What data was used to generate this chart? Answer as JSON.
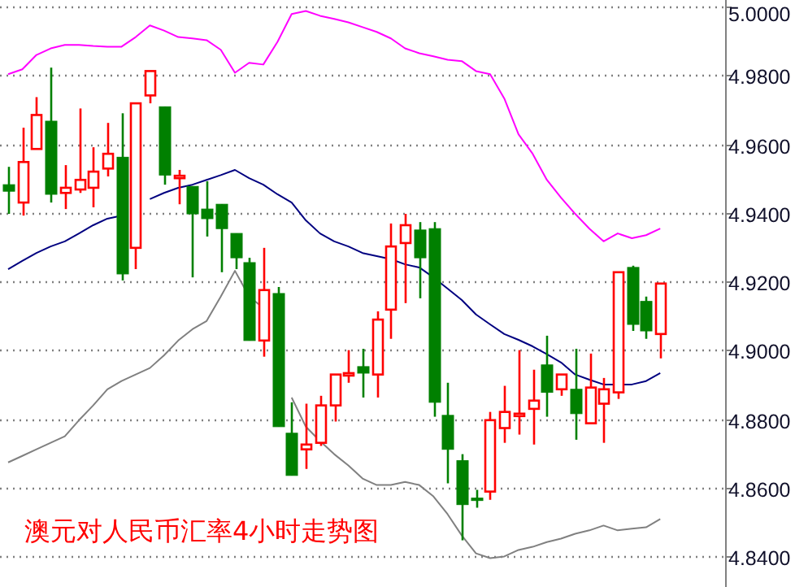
{
  "chart_data": {
    "type": "candlestick",
    "title": "澳元对人民币汇率4小时走势图",
    "categories": [
      null,
      null,
      null,
      null,
      null,
      null,
      null,
      null,
      null,
      null,
      null,
      null,
      null,
      null,
      null,
      null,
      null,
      null,
      null,
      null,
      null,
      null,
      null,
      null,
      null,
      null,
      null,
      null,
      null,
      null,
      null,
      null,
      null,
      null,
      null,
      null,
      null,
      null,
      null,
      null,
      null,
      null,
      null,
      null,
      null,
      null,
      null
    ],
    "ohlc": [
      [
        4.9482,
        4.9534,
        4.9397,
        4.9463
      ],
      [
        4.943,
        4.9648,
        4.9392,
        4.9548
      ],
      [
        4.9586,
        4.9737,
        4.9586,
        4.9685
      ],
      [
        4.9667,
        4.9823,
        4.943,
        4.9454
      ],
      [
        4.9458,
        4.9539,
        4.9411,
        4.9473
      ],
      [
        4.9468,
        4.9704,
        4.9458,
        4.9496
      ],
      [
        4.9473,
        4.9591,
        4.9416,
        4.952
      ],
      [
        4.9529,
        4.9662,
        4.9506,
        4.9572
      ],
      [
        4.9562,
        4.969,
        4.9203,
        4.9222
      ],
      [
        4.9298,
        4.9719,
        4.9236,
        4.9719
      ],
      [
        4.9742,
        4.9813,
        4.9719,
        4.9813
      ],
      [
        4.9709,
        4.9709,
        4.9482,
        4.951
      ],
      [
        4.9503,
        4.9525,
        4.9425,
        4.9508
      ],
      [
        4.9477,
        4.9477,
        4.9212,
        4.9397
      ],
      [
        4.9411,
        4.9492,
        4.9331,
        4.9383
      ],
      [
        4.9425,
        4.9425,
        4.9227,
        4.9354
      ],
      [
        4.934,
        4.934,
        4.9236,
        4.9269
      ],
      [
        4.9255,
        4.9269,
        4.9028,
        4.9028
      ],
      [
        4.9028,
        4.9298,
        4.8981,
        4.9175
      ],
      [
        4.9165,
        4.9184,
        4.8777,
        4.8777
      ],
      [
        4.8758,
        4.8848,
        4.8635,
        4.8635
      ],
      [
        4.8711,
        4.8844,
        4.8654,
        4.8725
      ],
      [
        4.873,
        4.8867,
        4.8721,
        4.8839
      ],
      [
        4.8839,
        4.8929,
        4.8792,
        4.8929
      ],
      [
        4.8929,
        4.9,
        4.8905,
        4.8933
      ],
      [
        4.8952,
        4.9004,
        4.8862,
        4.8933
      ],
      [
        4.8929,
        4.9113,
        4.8862,
        4.9089
      ],
      [
        4.9118,
        4.9369,
        4.9033,
        4.9302
      ],
      [
        4.9312,
        4.9397,
        4.9137,
        4.9364
      ],
      [
        4.935,
        4.9373,
        4.9151,
        4.9269
      ],
      [
        4.9354,
        4.9373,
        4.8806,
        4.8848
      ],
      [
        4.881,
        4.8905,
        4.8612,
        4.8711
      ],
      [
        4.8678,
        4.8697,
        4.8446,
        4.855
      ],
      [
        4.8569,
        4.8593,
        4.8541,
        4.8564
      ],
      [
        4.8588,
        4.882,
        4.8564,
        4.8796
      ],
      [
        4.8773,
        4.8896,
        4.873,
        4.882
      ],
      [
        4.881,
        4.9,
        4.8754,
        4.8815
      ],
      [
        4.8829,
        4.8943,
        4.8725,
        4.8853
      ],
      [
        4.8957,
        4.9042,
        4.8806,
        4.8877
      ],
      [
        4.8886,
        4.8929,
        4.8867,
        4.8929
      ],
      [
        4.8886,
        4.9004,
        4.8739,
        4.8815
      ],
      [
        4.8787,
        4.899,
        4.8787,
        4.8891
      ],
      [
        4.8844,
        4.8919,
        4.873,
        4.8886
      ],
      [
        4.8877,
        4.9227,
        4.8858,
        4.9227
      ],
      [
        4.9241,
        4.9246,
        4.9056,
        4.9075
      ],
      [
        4.9142,
        4.9156,
        4.9033,
        4.9056
      ],
      [
        4.9047,
        4.9194,
        4.8976,
        4.9194
      ]
    ],
    "colors": [
      "#008000",
      "#ff0000",
      "#ff0000",
      "#008000",
      "#ff0000",
      "#ff0000",
      "#ff0000",
      "#ff0000",
      "#008000",
      "#ff0000",
      "#ff0000",
      "#008000",
      "#ff0000",
      "#008000",
      "#008000",
      "#008000",
      "#008000",
      "#008000",
      "#ff0000",
      "#008000",
      "#008000",
      "#ff0000",
      "#ff0000",
      "#ff0000",
      "#ff0000",
      "#008000",
      "#ff0000",
      "#ff0000",
      "#ff0000",
      "#008000",
      "#008000",
      "#008000",
      "#008000",
      "#008000",
      "#ff0000",
      "#ff0000",
      "#ff0000",
      "#ff0000",
      "#008000",
      "#ff0000",
      "#008000",
      "#ff0000",
      "#ff0000",
      "#ff0000",
      "#008000",
      "#008000",
      "#ff0000"
    ],
    "series": [
      {
        "type": "line",
        "color": "#ff00ff",
        "values": [
          4.9804,
          4.9818,
          4.986,
          4.9879,
          4.9889,
          4.9889,
          4.9886,
          4.9884,
          4.9884,
          4.9912,
          4.9946,
          4.9931,
          4.9912,
          4.9908,
          4.9903,
          4.9875,
          4.9808,
          4.9837,
          4.9832,
          4.9898,
          4.9979,
          4.9988,
          4.9974,
          4.9965,
          4.9955,
          4.9941,
          4.9927,
          4.9908,
          4.9879,
          4.9865,
          4.9856,
          4.9846,
          4.9842,
          4.9813,
          4.9804,
          4.9733,
          4.9629,
          4.9572,
          4.9496,
          4.9444,
          4.9397,
          4.9354,
          4.9317,
          4.934,
          4.9326,
          4.9335,
          4.9354
        ]
      },
      {
        "type": "line",
        "color": "#000080",
        "values": [
          4.9236,
          4.926,
          4.9283,
          4.9302,
          4.9317,
          4.934,
          4.9364,
          4.9383,
          4.9392,
          null,
          4.944,
          4.9458,
          4.9473,
          4.9482,
          4.9496,
          4.951,
          4.9525,
          4.9501,
          4.9482,
          4.9454,
          4.943,
          4.9378,
          4.934,
          4.9317,
          4.9302,
          4.9283,
          4.9274,
          4.9265,
          4.925,
          4.9241,
          4.9212,
          4.9179,
          4.9146,
          4.9104,
          4.9075,
          4.9047,
          4.903,
          4.9011,
          4.8988,
          4.8964,
          4.8929,
          4.8914,
          4.89,
          4.89,
          4.89,
          4.891,
          4.8933
        ]
      },
      {
        "type": "line",
        "color": "#808080",
        "values": [
          4.8673,
          4.8692,
          4.8711,
          4.873,
          4.8749,
          4.8796,
          4.8839,
          4.8886,
          4.891,
          4.8929,
          4.8948,
          4.8985,
          4.9028,
          4.9061,
          4.9085,
          4.9156,
          4.9231,
          4.9156,
          4.9123,
          null,
          4.8862,
          4.8777,
          4.8735,
          4.8697,
          4.8664,
          4.8626,
          4.8607,
          4.8607,
          4.8616,
          4.8607,
          4.8574,
          4.8522,
          4.846,
          4.8408,
          4.8394,
          4.8399,
          4.8418,
          4.8427,
          4.8441,
          4.8451,
          4.8465,
          4.8475,
          4.8489,
          4.8475,
          4.848,
          4.8484,
          4.8508
        ]
      }
    ],
    "ylim": [
      4.831,
      5.002
    ],
    "yticks": [
      {
        "value": 4.84,
        "label": "4.8400"
      },
      {
        "value": 4.86,
        "label": "4.8600"
      },
      {
        "value": 4.88,
        "label": "4.8800"
      },
      {
        "value": 4.9,
        "label": "4.9000"
      },
      {
        "value": 4.92,
        "label": "4.9200"
      },
      {
        "value": 4.94,
        "label": "4.9400"
      },
      {
        "value": 4.96,
        "label": "4.9600"
      },
      {
        "value": 4.98,
        "label": "4.9800"
      },
      {
        "value": 5.0,
        "label": "5.0000"
      }
    ],
    "grid": "y",
    "tick_labels": "y"
  }
}
